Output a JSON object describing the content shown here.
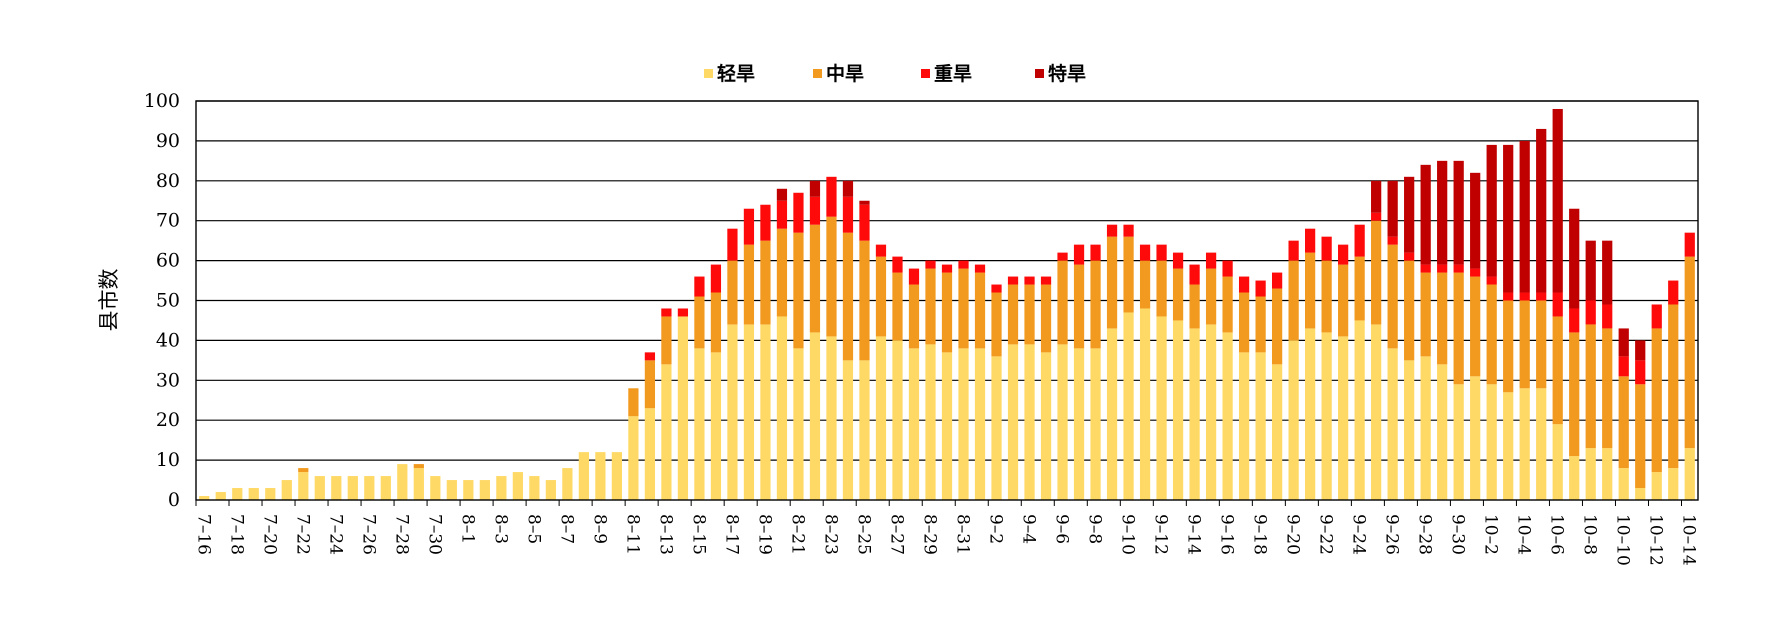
{
  "chart_data": {
    "type": "bar",
    "stacked": true,
    "ylabel": "县市数",
    "ylim": [
      0,
      100
    ],
    "yticks": [
      0,
      10,
      20,
      30,
      40,
      50,
      60,
      70,
      80,
      90,
      100
    ],
    "grid": true,
    "legend_position": "top-center",
    "x_tick_labels": [
      "7-16",
      "7-18",
      "7-20",
      "7-22",
      "7-24",
      "7-26",
      "7-28",
      "7-30",
      "8-1",
      "8-3",
      "8-5",
      "8-7",
      "8-9",
      "8-11",
      "8-13",
      "8-15",
      "8-17",
      "8-19",
      "8-21",
      "8-23",
      "8-25",
      "8-27",
      "8-29",
      "8-31",
      "9-2",
      "9-4",
      "9-6",
      "9-8",
      "9-10",
      "9-12",
      "9-14",
      "9-16",
      "9-18",
      "9-20",
      "9-22",
      "9-24",
      "9-26",
      "9-28",
      "9-30",
      "10-2",
      "10-4",
      "10-6",
      "10-8",
      "10-10",
      "10-12",
      "10-14"
    ],
    "categories": [
      "7-16",
      "7-17",
      "7-18",
      "7-19",
      "7-20",
      "7-21",
      "7-22",
      "7-23",
      "7-24",
      "7-25",
      "7-26",
      "7-27",
      "7-28",
      "7-29",
      "7-30",
      "7-31",
      "8-1",
      "8-2",
      "8-3",
      "8-4",
      "8-5",
      "8-6",
      "8-7",
      "8-8",
      "8-9",
      "8-10",
      "8-11",
      "8-12",
      "8-13",
      "8-14",
      "8-15",
      "8-16",
      "8-17",
      "8-18",
      "8-19",
      "8-20",
      "8-21",
      "8-22",
      "8-23",
      "8-24",
      "8-25",
      "8-26",
      "8-27",
      "8-28",
      "8-29",
      "8-30",
      "8-31",
      "9-1",
      "9-2",
      "9-3",
      "9-4",
      "9-5",
      "9-6",
      "9-7",
      "9-8",
      "9-9",
      "9-10",
      "9-11",
      "9-12",
      "9-13",
      "9-14",
      "9-15",
      "9-16",
      "9-17",
      "9-18",
      "9-19",
      "9-20",
      "9-21",
      "9-22",
      "9-23",
      "9-24",
      "9-25",
      "9-26",
      "9-27",
      "9-28",
      "9-29",
      "9-30",
      "10-1",
      "10-2",
      "10-3",
      "10-4",
      "10-5",
      "10-6",
      "10-7",
      "10-8",
      "10-9",
      "10-10",
      "10-11",
      "10-12",
      "10-13",
      "10-14"
    ],
    "series": [
      {
        "name": "轻旱",
        "color": "#FFD966",
        "values": [
          1,
          2,
          3,
          3,
          3,
          5,
          7,
          6,
          6,
          6,
          6,
          6,
          9,
          8,
          6,
          5,
          5,
          5,
          6,
          7,
          6,
          5,
          8,
          12,
          12,
          12,
          21,
          23,
          34,
          46,
          38,
          37,
          44,
          44,
          44,
          46,
          38,
          42,
          41,
          35,
          35,
          41,
          40,
          38,
          39,
          37,
          38,
          38,
          36,
          39,
          39,
          37,
          39,
          38,
          38,
          43,
          47,
          48,
          46,
          45,
          43,
          44,
          42,
          37,
          37,
          34,
          40,
          43,
          42,
          41,
          45,
          44,
          38,
          35,
          36,
          34,
          29,
          31,
          29,
          27,
          28,
          28,
          19,
          11,
          13,
          13,
          8,
          3,
          7,
          8,
          13
        ]
      },
      {
        "name": "中旱",
        "color": "#F29A1F",
        "values": [
          0,
          0,
          0,
          0,
          0,
          0,
          1,
          0,
          0,
          0,
          0,
          0,
          0,
          1,
          0,
          0,
          0,
          0,
          0,
          0,
          0,
          0,
          0,
          0,
          0,
          0,
          7,
          12,
          12,
          0,
          13,
          15,
          16,
          20,
          21,
          22,
          29,
          27,
          30,
          32,
          30,
          20,
          17,
          16,
          19,
          20,
          20,
          19,
          16,
          15,
          15,
          17,
          21,
          21,
          22,
          23,
          19,
          12,
          14,
          13,
          11,
          14,
          14,
          15,
          14,
          19,
          20,
          19,
          18,
          18,
          16,
          26,
          26,
          25,
          21,
          23,
          28,
          25,
          25,
          23,
          22,
          22,
          27,
          31,
          31,
          30,
          23,
          26,
          36,
          41,
          48
        ]
      },
      {
        "name": "重旱",
        "color": "#FF0A0A",
        "values": [
          0,
          0,
          0,
          0,
          0,
          0,
          0,
          0,
          0,
          0,
          0,
          0,
          0,
          0,
          0,
          0,
          0,
          0,
          0,
          0,
          0,
          0,
          0,
          0,
          0,
          0,
          0,
          2,
          2,
          2,
          5,
          7,
          8,
          9,
          9,
          7,
          10,
          7,
          10,
          9,
          9,
          3,
          4,
          4,
          2,
          2,
          2,
          2,
          2,
          2,
          2,
          2,
          2,
          5,
          4,
          3,
          3,
          4,
          4,
          4,
          5,
          4,
          4,
          4,
          4,
          4,
          5,
          6,
          6,
          5,
          8,
          2,
          2,
          2,
          2,
          2,
          2,
          2,
          2,
          2,
          2,
          2,
          6,
          6,
          6,
          6,
          5,
          6,
          6,
          6,
          6
        ]
      },
      {
        "name": "特旱",
        "color": "#C00000",
        "values": [
          0,
          0,
          0,
          0,
          0,
          0,
          0,
          0,
          0,
          0,
          0,
          0,
          0,
          0,
          0,
          0,
          0,
          0,
          0,
          0,
          0,
          0,
          0,
          0,
          0,
          0,
          0,
          0,
          0,
          0,
          0,
          0,
          0,
          0,
          0,
          3,
          0,
          4,
          0,
          4,
          1,
          0,
          0,
          0,
          0,
          0,
          0,
          0,
          0,
          0,
          0,
          0,
          0,
          0,
          0,
          0,
          0,
          0,
          0,
          0,
          0,
          0,
          0,
          0,
          0,
          0,
          0,
          0,
          0,
          0,
          0,
          8,
          14,
          19,
          25,
          26,
          26,
          24,
          33,
          37,
          38,
          41,
          46,
          25,
          15,
          16,
          7,
          5,
          0,
          0,
          0
        ]
      }
    ],
    "overrides_note": ""
  }
}
